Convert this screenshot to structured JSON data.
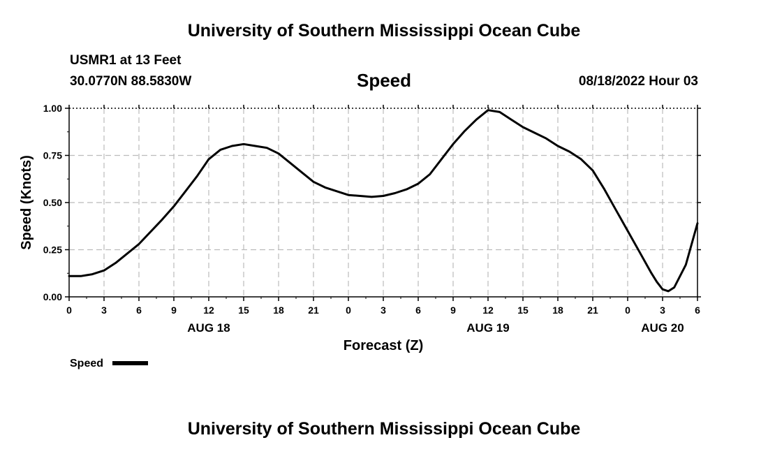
{
  "header": {
    "title": "University of Southern Mississippi Ocean Cube",
    "station": "USMR1 at 13 Feet",
    "coords": "30.0770N  88.5830W",
    "variable": "Speed",
    "issued": "08/18/2022 Hour 03"
  },
  "footer": {
    "title": "University of Southern Mississippi Ocean Cube"
  },
  "colors": {
    "line": "#000000",
    "grid": "#bbbbbb"
  },
  "chart_data": {
    "type": "line",
    "title": "Speed",
    "xlabel": "Forecast (Z)",
    "ylabel": "Speed (Knots)",
    "grid": true,
    "legend_position": "bottom-left",
    "xlim": [
      0,
      54
    ],
    "ylim": [
      0,
      1
    ],
    "y_ticks": [
      "0.00",
      "0.25",
      "0.50",
      "0.75",
      "1.00"
    ],
    "x_tick_labels": [
      "0",
      "3",
      "6",
      "9",
      "12",
      "15",
      "18",
      "21",
      "0",
      "3",
      "6",
      "9",
      "12",
      "15",
      "18",
      "21",
      "0",
      "3",
      "6"
    ],
    "date_labels": [
      {
        "label": "AUG 18",
        "at_hour": 12
      },
      {
        "label": "AUG 19",
        "at_hour": 36
      },
      {
        "label": "AUG 20",
        "at_hour": 51
      }
    ],
    "series": [
      {
        "name": "Speed",
        "x": [
          0,
          1,
          2,
          3,
          4,
          6,
          8,
          9,
          10,
          11,
          12,
          13,
          14,
          15,
          16,
          17,
          18,
          19,
          20,
          21,
          22,
          24,
          25,
          26,
          27,
          28,
          29,
          30,
          31,
          32,
          33,
          34,
          35,
          36,
          37,
          38,
          39,
          40,
          41,
          42,
          43,
          44,
          45,
          46,
          47,
          48,
          49,
          50,
          50.5,
          51,
          51.5,
          52,
          53,
          54
        ],
        "y": [
          0.11,
          0.11,
          0.12,
          0.14,
          0.18,
          0.28,
          0.41,
          0.48,
          0.56,
          0.64,
          0.73,
          0.78,
          0.8,
          0.81,
          0.8,
          0.79,
          0.76,
          0.71,
          0.66,
          0.61,
          0.58,
          0.54,
          0.535,
          0.53,
          0.535,
          0.55,
          0.57,
          0.6,
          0.65,
          0.73,
          0.81,
          0.88,
          0.94,
          0.99,
          0.98,
          0.94,
          0.9,
          0.87,
          0.84,
          0.8,
          0.77,
          0.73,
          0.67,
          0.57,
          0.46,
          0.35,
          0.24,
          0.13,
          0.08,
          0.04,
          0.03,
          0.05,
          0.17,
          0.39
        ]
      }
    ]
  }
}
